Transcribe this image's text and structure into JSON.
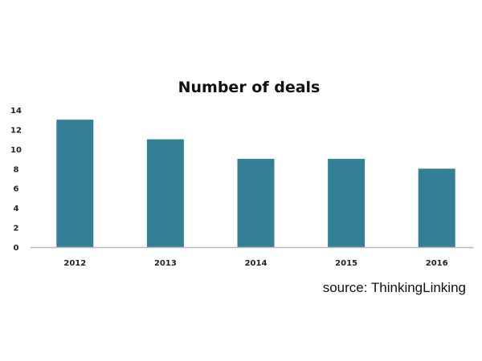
{
  "chart_data": {
    "type": "bar",
    "title": "Number of deals",
    "categories": [
      "2012",
      "2013",
      "2014",
      "2015",
      "2016"
    ],
    "values": [
      13,
      11,
      9,
      9,
      8
    ],
    "yticks": [
      "0",
      "2",
      "4",
      "6",
      "8",
      "10",
      "12",
      "14"
    ],
    "ylim": [
      0,
      14
    ],
    "xlabel": "",
    "ylabel": "",
    "grid": false,
    "bar_color": "#337f96",
    "source": "source:  ThinkingLinking"
  }
}
